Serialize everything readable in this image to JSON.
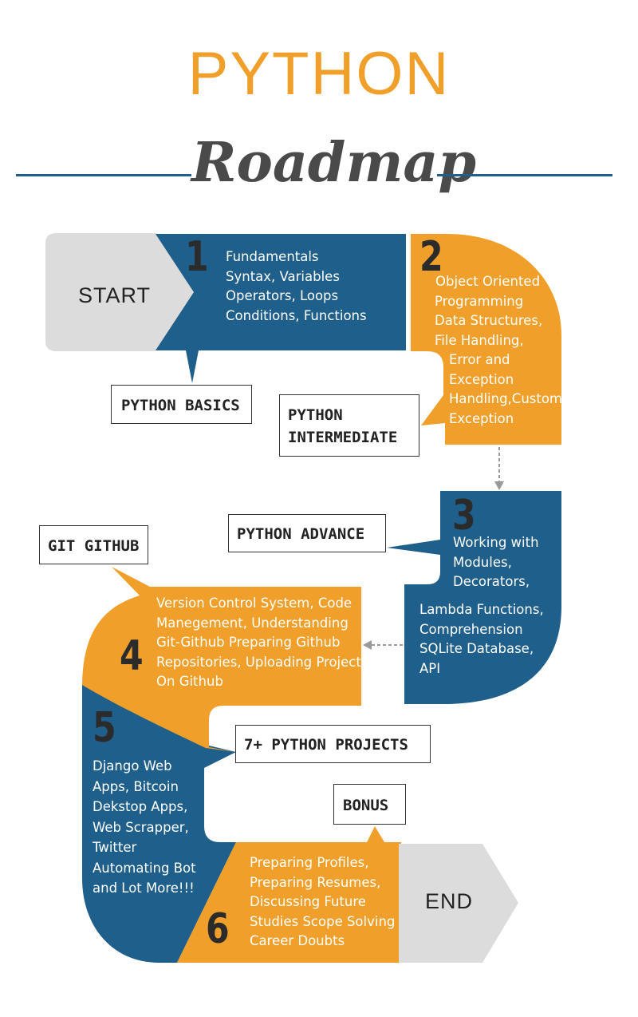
{
  "header": {
    "title": "PYTHON",
    "subtitle": "Roadmap"
  },
  "colors": {
    "blue": "#1f5f8b",
    "orange": "#f0a02a",
    "gray": "#dcdcdc",
    "title": "#f0a02a",
    "subtitle": "#4a4a4a"
  },
  "start": {
    "label": "START"
  },
  "end": {
    "label": "END"
  },
  "steps": [
    {
      "number": "1",
      "label": "PYTHON BASICS",
      "lines": [
        "Fundamentals",
        "Syntax, Variables",
        "Operators, Loops",
        "Conditions, Functions"
      ]
    },
    {
      "number": "2",
      "label_lines": [
        "PYTHON",
        "INTERMEDIATE"
      ],
      "lines": [
        "Object Oriented",
        "Programming",
        "Data Structures,",
        "File Handling,",
        "Error and",
        "Exception",
        "Handling,Custom",
        "Exception"
      ]
    },
    {
      "number": "3",
      "label": "PYTHON ADVANCE",
      "lines": [
        "Working with",
        "Modules,",
        "Decorators,",
        "Lambda Functions,",
        "Comprehension",
        "SQLite Database,",
        "API"
      ]
    },
    {
      "number": "4",
      "label": "GIT GITHUB",
      "lines": [
        "Version Control System, Code",
        "Manegement, Understanding",
        "Git-Github Preparing Github",
        "Repositories, Uploading Projects",
        "On Github"
      ]
    },
    {
      "number": "5",
      "label": "7+ PYTHON PROJECTS",
      "lines": [
        "Django Web",
        "Apps, Bitcoin",
        "Dekstop Apps,",
        "Web Scrapper,",
        "Twitter",
        "Automating Bot",
        "and Lot More!!!"
      ]
    },
    {
      "number": "6",
      "label": "BONUS",
      "lines": [
        "Preparing Profiles,",
        "Preparing Resumes,",
        "Discussing Future",
        "Studies Scope Solving",
        "Career Doubts"
      ]
    }
  ]
}
